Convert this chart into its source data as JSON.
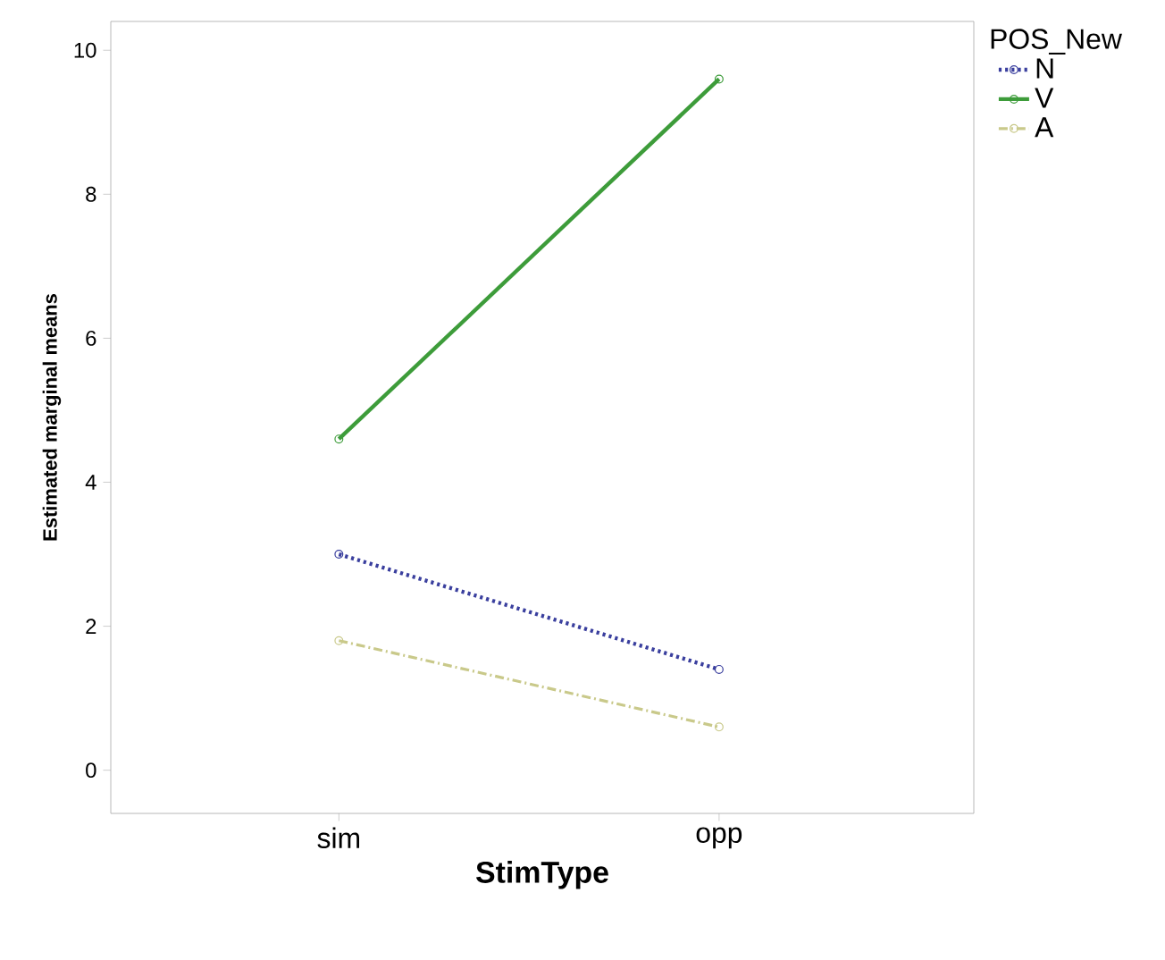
{
  "chart_data": {
    "type": "line",
    "xlabel": "StimType",
    "ylabel": "Estimated marginal means",
    "legend_title": "POS_New",
    "categories": [
      "sim",
      "opp"
    ],
    "series": [
      {
        "name": "N",
        "color": "#3a3f9e",
        "values": [
          3.0,
          1.4
        ],
        "line_style": "dotted"
      },
      {
        "name": "V",
        "color": "#3d9c3a",
        "values": [
          4.6,
          9.6
        ],
        "line_style": "solid"
      },
      {
        "name": "A",
        "color": "#c9c98a",
        "values": [
          1.8,
          0.6
        ],
        "line_style": "dashed"
      }
    ],
    "ylim": [
      -0.6,
      10.4
    ],
    "yticks": [
      0,
      2,
      4,
      6,
      8,
      10
    ],
    "marker": "circle",
    "legend": "top right",
    "grid": false
  }
}
